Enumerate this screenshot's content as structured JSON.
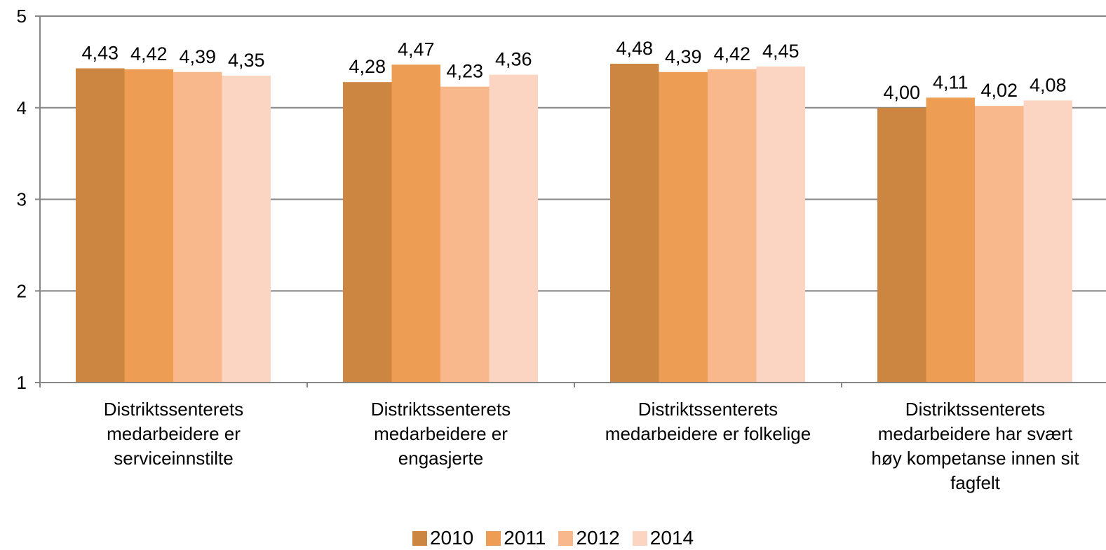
{
  "chart_data": {
    "type": "bar",
    "categories": [
      [
        "Distriktssenterets",
        "medarbeidere er",
        "serviceinnstilte"
      ],
      [
        "Distriktssenterets",
        "medarbeidere er",
        "engasjerte"
      ],
      [
        "Distriktssenterets",
        "medarbeidere er folkelige"
      ],
      [
        "Distriktssenterets",
        "medarbeidere har svært",
        "høy kompetanse innen sit",
        "fagfelt"
      ]
    ],
    "series": [
      {
        "name": "2010",
        "color": "#CD8641",
        "values": [
          4.43,
          4.28,
          4.48,
          4.0
        ],
        "labels": [
          "4,43",
          "4,28",
          "4,48",
          "4,00"
        ]
      },
      {
        "name": "2011",
        "color": "#ED9E54",
        "values": [
          4.42,
          4.47,
          4.39,
          4.11
        ],
        "labels": [
          "4,42",
          "4,47",
          "4,39",
          "4,11"
        ]
      },
      {
        "name": "2012",
        "color": "#F9B88B",
        "values": [
          4.39,
          4.23,
          4.42,
          4.02
        ],
        "labels": [
          "4,39",
          "4,23",
          "4,42",
          "4,02"
        ]
      },
      {
        "name": "2014",
        "color": "#FCD5C2",
        "values": [
          4.35,
          4.36,
          4.45,
          4.08
        ],
        "labels": [
          "4,35",
          "4,36",
          "4,45",
          "4,08"
        ]
      }
    ],
    "ylim": [
      1,
      5
    ],
    "yticks": [
      "1",
      "2",
      "3",
      "4",
      "5"
    ],
    "grid": true,
    "legend": "bottom"
  }
}
